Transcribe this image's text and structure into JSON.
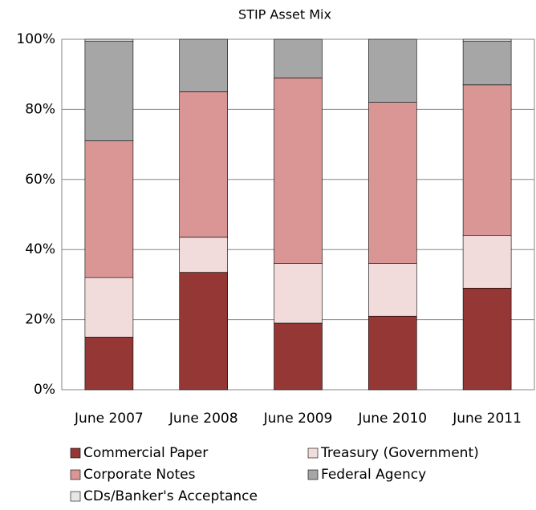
{
  "chart_data": {
    "type": "stacked_bar",
    "title": "STIP Asset Mix",
    "categories": [
      "June 2007",
      "June 2008",
      "June 2009",
      "June 2010",
      "June 2011"
    ],
    "series": [
      {
        "name": "Commercial Paper",
        "color": "#953735",
        "values": [
          15,
          33.5,
          19,
          21,
          29
        ]
      },
      {
        "name": "Treasury (Government)",
        "color": "#f2dcdb",
        "values": [
          17,
          10,
          17,
          15,
          15
        ]
      },
      {
        "name": "Corporate Notes",
        "color": "#d99694",
        "values": [
          39,
          41.5,
          53,
          46,
          43
        ]
      },
      {
        "name": "Federal Agency",
        "color": "#a6a6a6",
        "values": [
          28.5,
          15,
          11,
          18,
          12.5
        ]
      },
      {
        "name": "CDs/Banker's Acceptance",
        "color": "#e6e6e6",
        "values": [
          0.5,
          0,
          0,
          0,
          0.5
        ]
      }
    ],
    "ylim": [
      0,
      100
    ],
    "yticks": [
      {
        "value": 0,
        "label": "0%"
      },
      {
        "value": 20,
        "label": "20%"
      },
      {
        "value": 40,
        "label": "40%"
      },
      {
        "value": 60,
        "label": "60%"
      },
      {
        "value": 80,
        "label": "80%"
      },
      {
        "value": 100,
        "label": "100%"
      }
    ],
    "grid": true
  }
}
